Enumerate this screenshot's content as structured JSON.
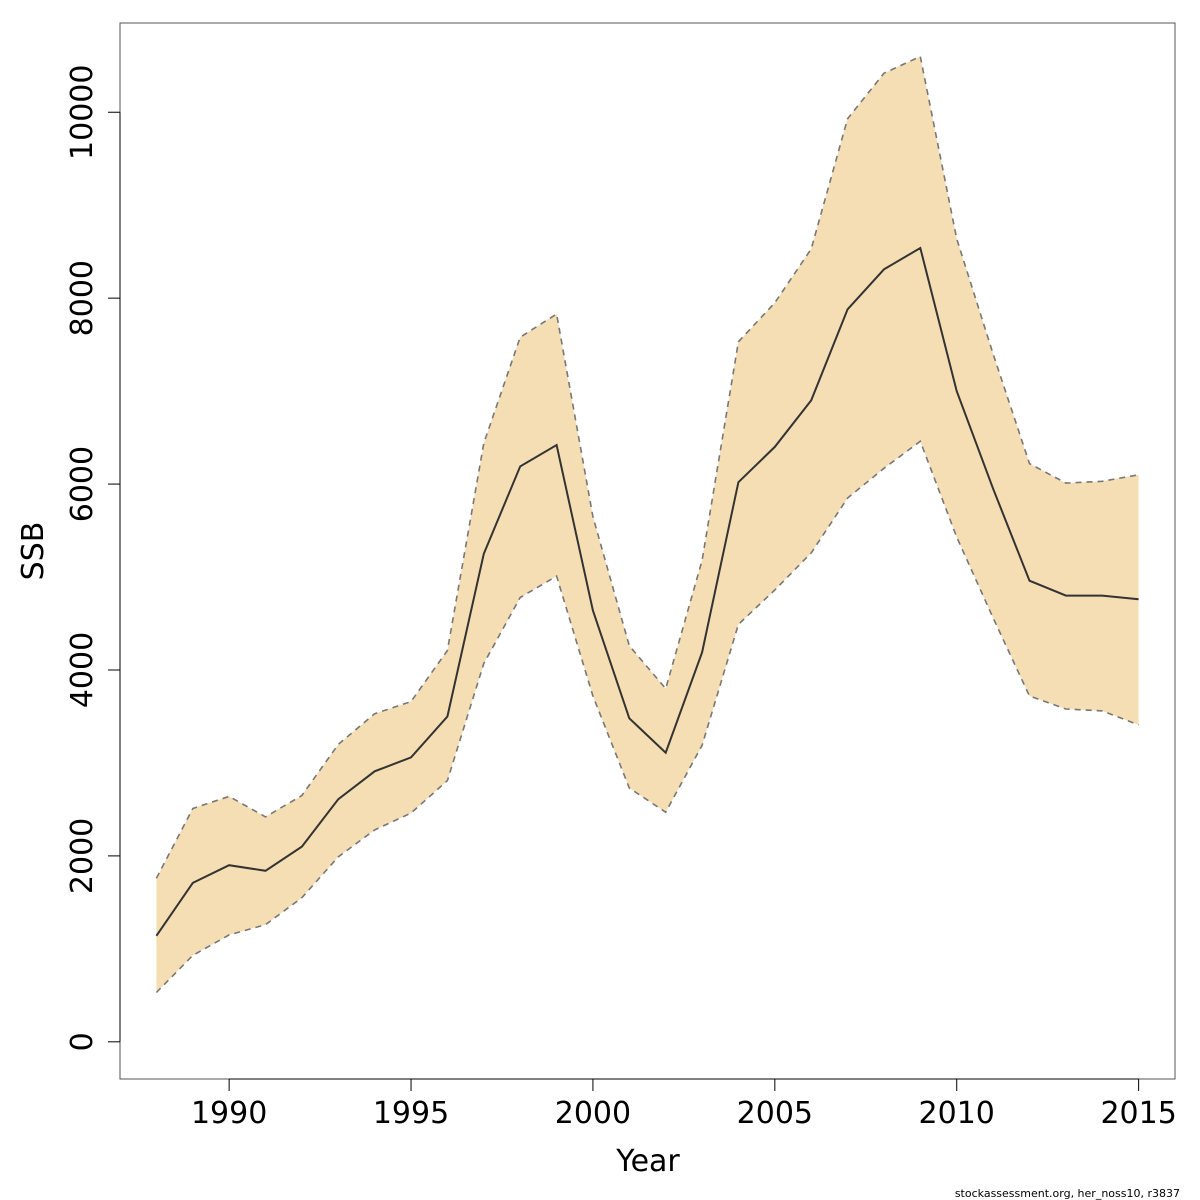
{
  "chart_data": {
    "type": "area",
    "xlabel": "Year",
    "ylabel": "SSB",
    "xlim": [
      1987,
      2016
    ],
    "ylim": [
      -400,
      10960
    ],
    "x_ticks": [
      1990,
      1995,
      2000,
      2005,
      2010,
      2015
    ],
    "y_ticks": [
      0,
      2000,
      4000,
      6000,
      8000,
      10000
    ],
    "grid": false,
    "legend": "none",
    "colors": {
      "band": "#f5deb3",
      "median": "#333333",
      "bounds": "#777777"
    },
    "x": [
      1988,
      1989,
      1990,
      1991,
      1992,
      1993,
      1994,
      1995,
      1996,
      1997,
      1998,
      1999,
      2000,
      2001,
      2002,
      2003,
      2004,
      2005,
      2006,
      2007,
      2008,
      2009,
      2010,
      2011,
      2012,
      2013,
      2014,
      2015
    ],
    "series": [
      {
        "name": "",
        "role": "median",
        "values": [
          1140,
          1710,
          1900,
          1840,
          2100,
          2610,
          2910,
          3060,
          3500,
          5250,
          6190,
          6420,
          4640,
          3480,
          3110,
          4190,
          6020,
          6400,
          6900,
          7880,
          8310,
          8540,
          7000,
          5950,
          4960,
          4800,
          4800,
          4760
        ]
      },
      {
        "name": "",
        "role": "upper",
        "values": [
          1760,
          2510,
          2640,
          2420,
          2650,
          3200,
          3530,
          3660,
          4210,
          6440,
          7580,
          7830,
          5650,
          4260,
          3800,
          5180,
          7530,
          7950,
          8530,
          9930,
          10420,
          10600,
          8640,
          7400,
          6220,
          6010,
          6030,
          6100
        ]
      },
      {
        "name": "",
        "role": "lower",
        "values": [
          530,
          930,
          1150,
          1260,
          1550,
          1990,
          2280,
          2460,
          2810,
          4070,
          4780,
          5010,
          3720,
          2730,
          2470,
          3190,
          4490,
          4860,
          5260,
          5850,
          6170,
          6460,
          5430,
          4560,
          3720,
          3580,
          3560,
          3410
        ]
      }
    ]
  },
  "footnote": "stockassessment.org, her_noss10, r3837"
}
